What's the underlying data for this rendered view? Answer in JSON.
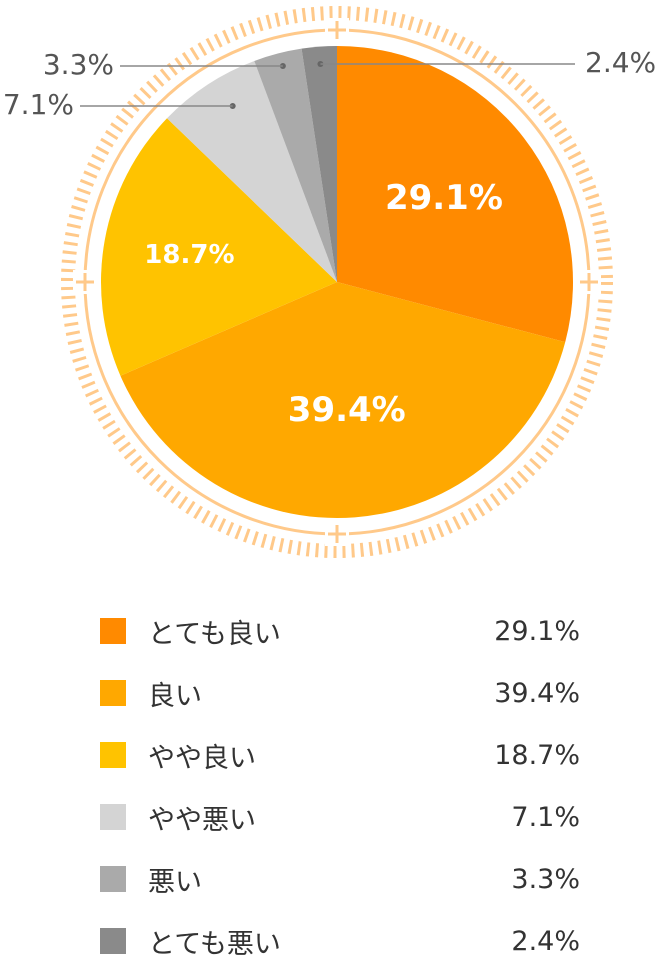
{
  "chart_data": {
    "type": "pie",
    "title": "",
    "unit": "%",
    "slices": [
      {
        "label": "とても良い",
        "value": 29.1,
        "display": "29.1%",
        "color": "#FF8A00"
      },
      {
        "label": "良い",
        "value": 39.4,
        "display": "39.4%",
        "color": "#FFA800"
      },
      {
        "label": "やや良い",
        "value": 18.7,
        "display": "18.7%",
        "color": "#FFC300"
      },
      {
        "label": "やや悪い",
        "value": 7.1,
        "display": "7.1%",
        "color": "#D4D4D4"
      },
      {
        "label": "悪い",
        "value": 3.3,
        "display": "3.3%",
        "color": "#AAAAAA"
      },
      {
        "label": "とても悪い",
        "value": 2.4,
        "display": "2.4%",
        "color": "#8A8A8A"
      }
    ],
    "start": "12 o'clock",
    "direction": "clockwise",
    "legend_position": "bottom"
  },
  "legend": {
    "items": [
      {
        "label": "とても良い",
        "value": "29.1%",
        "color": "#FF8A00"
      },
      {
        "label": "良い",
        "value": "39.4%",
        "color": "#FFA800"
      },
      {
        "label": "やや良い",
        "value": "18.7%",
        "color": "#FFC300"
      },
      {
        "label": "やや悪い",
        "value": "7.1%",
        "color": "#D4D4D4"
      },
      {
        "label": "悪い",
        "value": "3.3%",
        "color": "#AAAAAA"
      },
      {
        "label": "とても悪い",
        "value": "2.4%",
        "color": "#8A8A8A"
      }
    ]
  },
  "decoration": {
    "ring_color": "#FFC98A"
  }
}
